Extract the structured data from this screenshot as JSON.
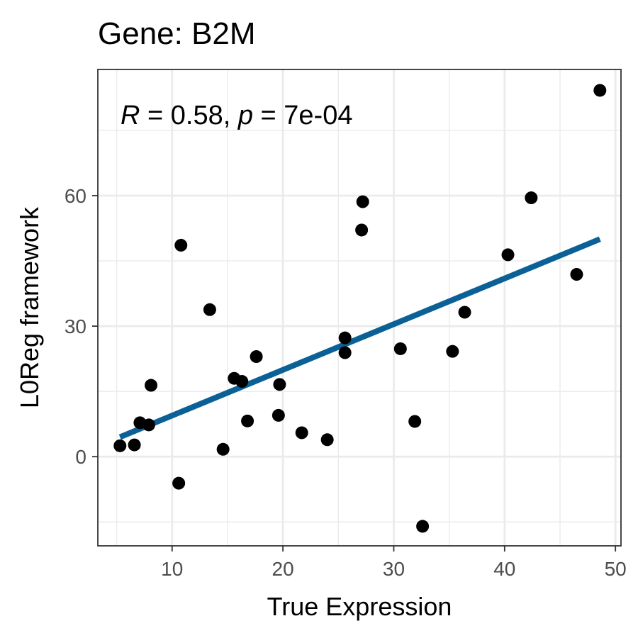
{
  "chart_data": {
    "type": "scatter",
    "title": "Gene: B2M",
    "xlabel": "True Expression",
    "ylabel": "L0Reg framework",
    "xlim": [
      3.3,
      50.5
    ],
    "ylim": [
      -20.5,
      89
    ],
    "x_ticks": [
      10,
      20,
      30,
      40,
      50
    ],
    "y_ticks": [
      0,
      30,
      60
    ],
    "grid": true,
    "annotation": {
      "r_symbol": "R",
      "r_text": " = 0.58, ",
      "p_symbol": "p",
      "p_text": " = 7e-04"
    },
    "points_color": "#000000",
    "fit_color": "#0b6196",
    "fit_line": {
      "x": [
        5.3,
        48.6
      ],
      "y": [
        4.5,
        50.0
      ]
    },
    "points": [
      {
        "x": 5.3,
        "y": 2.5
      },
      {
        "x": 6.6,
        "y": 2.7
      },
      {
        "x": 7.1,
        "y": 7.8
      },
      {
        "x": 7.9,
        "y": 7.3
      },
      {
        "x": 8.1,
        "y": 16.4
      },
      {
        "x": 10.6,
        "y": -6.1
      },
      {
        "x": 10.8,
        "y": 48.6
      },
      {
        "x": 13.4,
        "y": 33.8
      },
      {
        "x": 14.6,
        "y": 1.7
      },
      {
        "x": 15.6,
        "y": 18.0
      },
      {
        "x": 16.3,
        "y": 17.3
      },
      {
        "x": 16.8,
        "y": 8.2
      },
      {
        "x": 17.6,
        "y": 23.0
      },
      {
        "x": 19.6,
        "y": 9.5
      },
      {
        "x": 19.7,
        "y": 16.6
      },
      {
        "x": 21.7,
        "y": 5.5
      },
      {
        "x": 24.0,
        "y": 3.9
      },
      {
        "x": 25.6,
        "y": 27.3
      },
      {
        "x": 25.6,
        "y": 23.9
      },
      {
        "x": 27.1,
        "y": 52.1
      },
      {
        "x": 27.2,
        "y": 58.6
      },
      {
        "x": 30.6,
        "y": 24.8
      },
      {
        "x": 31.9,
        "y": 8.1
      },
      {
        "x": 32.6,
        "y": -16.0
      },
      {
        "x": 35.3,
        "y": 24.2
      },
      {
        "x": 36.4,
        "y": 33.2
      },
      {
        "x": 40.3,
        "y": 46.4
      },
      {
        "x": 42.4,
        "y": 59.5
      },
      {
        "x": 46.5,
        "y": 41.9
      },
      {
        "x": 48.6,
        "y": 84.2
      }
    ]
  }
}
